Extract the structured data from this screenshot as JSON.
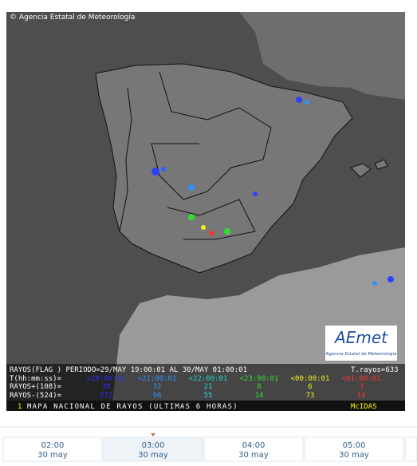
{
  "copyright": "© Agencia Estatal de Meteorología",
  "legend": {
    "header": "RAYOS(FLAG ) PERIODO=29/MAY 19:00:01 AL 30/MAY 01:00:01",
    "total": "T.rayos=633",
    "time_label": "T(hh:mm:ss)=",
    "positive_label": "RAYOS+(108)=",
    "negative_label": "RAYOS-(524)=",
    "columns": [
      {
        "time": "<20:00:01",
        "color": "#3030ff",
        "positive": 38,
        "negative": 272
      },
      {
        "time": "<21:00:01",
        "color": "#2f8fff",
        "positive": 32,
        "negative": 96
      },
      {
        "time": "<22:00:01",
        "color": "#20d0d0",
        "positive": 21,
        "negative": 55
      },
      {
        "time": "<23:00:01",
        "color": "#30e030",
        "positive": 8,
        "negative": 14
      },
      {
        "time": "<00:00:01",
        "color": "#f0f020",
        "positive": 6,
        "negative": 73
      },
      {
        "time": "<01:00:01",
        "color": "#ff3030",
        "positive": 3,
        "negative": 14
      }
    ]
  },
  "footer": {
    "number": "1",
    "title": "MAPA NACIONAL DE RAYOS (ULTIMAS 6 HORAS)",
    "source": "McIDAS"
  },
  "logo": {
    "name": "AEmet",
    "subtitle": "Agencia Estatal de Meteorología"
  },
  "timeline": [
    {
      "time": "02:00",
      "date": "30 may"
    },
    {
      "time": "03:00",
      "date": "30 may"
    },
    {
      "time": "04:00",
      "date": "30 may"
    },
    {
      "time": "05:00",
      "date": "30 may"
    }
  ],
  "selected": 1
}
